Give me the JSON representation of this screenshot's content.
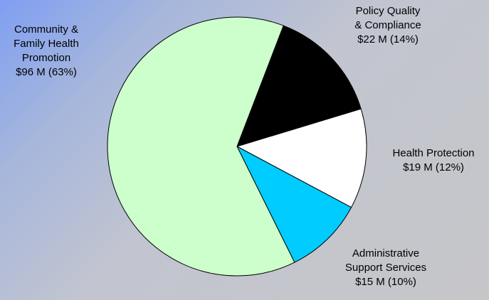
{
  "chart_data": {
    "type": "pie",
    "title": "",
    "slices": [
      {
        "label_lines": [
          "Policy Quality",
          "& Compliance"
        ],
        "value_text": "$22 M  (14%)",
        "value": 22,
        "percent": 14,
        "color": "#000000"
      },
      {
        "label_lines": [
          "Health Protection"
        ],
        "value_text": "$19 M (12%)",
        "value": 19,
        "percent": 12,
        "color": "#ffffff"
      },
      {
        "label_lines": [
          "Administrative",
          "Support Services"
        ],
        "value_text": "$15 M (10%)",
        "value": 15,
        "percent": 10,
        "color": "#00ccff"
      },
      {
        "label_lines": [
          "Community &",
          "Family Health",
          "Promotion"
        ],
        "value_text": "$96 M (63%)",
        "value": 96,
        "percent": 63,
        "color": "#ccffcc"
      }
    ]
  }
}
